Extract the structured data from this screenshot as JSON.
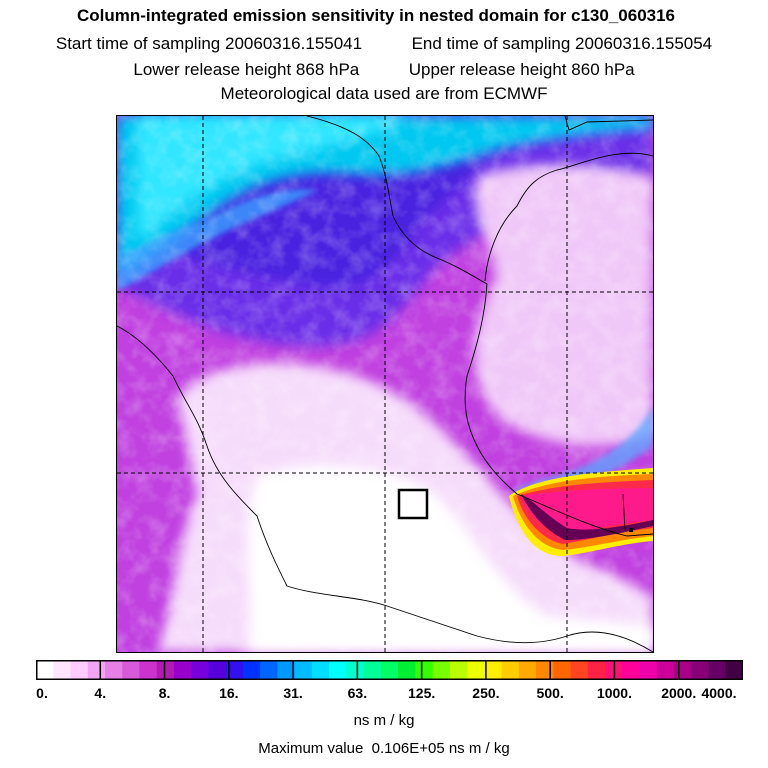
{
  "header": {
    "title": "Column-integrated emission sensitivity in nested domain for c130_060316",
    "start_label": "Start time of sampling",
    "start_value": "20060316.155041",
    "end_label": "End time of sampling",
    "end_value": "20060316.155054",
    "lower_label": "Lower release height",
    "lower_value": "868 hPa",
    "upper_label": "Upper release height",
    "upper_value": "860 hPa",
    "met_text": "Meteorological data used are from ECMWF"
  },
  "colorbar": {
    "labels": [
      "0.",
      "4.",
      "8.",
      "16.",
      "31.",
      "63.",
      "125.",
      "250.",
      "500.",
      "1000.",
      "2000.",
      "4000."
    ],
    "colors": [
      "#ffffff",
      "#ffe6ff",
      "#ffccff",
      "#f2a6f2",
      "#e680e6",
      "#d95ad9",
      "#cc33cc",
      "#b31ab3",
      "#9900cc",
      "#7700dd",
      "#5500dd",
      "#3311ee",
      "#0033ff",
      "#0066ff",
      "#0099ff",
      "#00bbff",
      "#00ddff",
      "#00ffff",
      "#00ffcc",
      "#00ff99",
      "#00ff66",
      "#00ee33",
      "#33ff00",
      "#77ff00",
      "#bbff00",
      "#eeff00",
      "#ffee00",
      "#ffcc00",
      "#ffaa00",
      "#ff8800",
      "#ff6600",
      "#ff4422",
      "#ff2244",
      "#ff1177",
      "#ff0099",
      "#ee00aa",
      "#cc0099",
      "#aa0088",
      "#880077",
      "#660066",
      "#440044"
    ],
    "units": "ns m / kg"
  },
  "footer": {
    "max_label": "Maximum value",
    "max_value": "0.106E+05 ns m / kg"
  }
}
